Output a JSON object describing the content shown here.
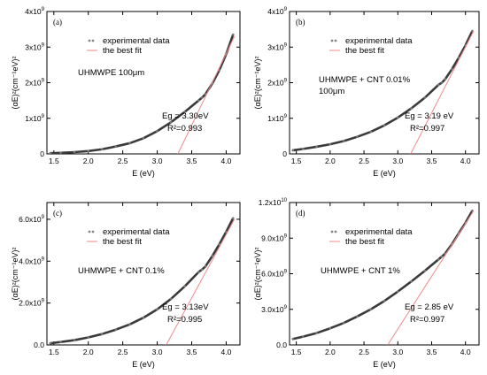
{
  "chart_data": [
    {
      "type": "scatter",
      "panel_label": "(a)",
      "ylabel": "(αE)²(cm⁻¹eV)²",
      "xlabel": "E (eV)",
      "xlim": [
        1.4,
        4.2
      ],
      "ylim": [
        0,
        4000000000
      ],
      "xticks": [
        "1.5",
        "2.0",
        "2.5",
        "3.0",
        "3.5",
        "4.0"
      ],
      "yticks": [
        {
          "v": 0,
          "b": "0",
          "e": ""
        },
        {
          "v": 1000000000,
          "b": "1x10",
          "e": "9"
        },
        {
          "v": 2000000000,
          "b": "2x10",
          "e": "9"
        },
        {
          "v": 3000000000,
          "b": "3x10",
          "e": "9"
        },
        {
          "v": 4000000000,
          "b": "4x10",
          "e": "9"
        }
      ],
      "legend": [
        "experimental data",
        "the best fit"
      ],
      "sample": "UHMWPE 100μm",
      "sample_line2": "",
      "eg_text": "Eg = 3.30eV",
      "r2_text": "R²=0.993",
      "series": [
        {
          "name": "experimental data",
          "kind": "points",
          "x": [
            1.45,
            1.6,
            1.8,
            2.0,
            2.2,
            2.4,
            2.6,
            2.8,
            3.0,
            3.2,
            3.4,
            3.6,
            3.65,
            3.7,
            3.8,
            3.9,
            4.0,
            4.1
          ],
          "y": [
            20000000,
            30000000,
            50000000,
            80000000,
            130000000,
            210000000,
            300000000,
            440000000,
            640000000,
            890000000,
            1180000000,
            1500000000,
            1580000000,
            1680000000,
            1980000000,
            2350000000,
            2800000000,
            3350000000
          ]
        },
        {
          "name": "the best fit",
          "kind": "line",
          "x": [
            3.3,
            4.12
          ],
          "y": [
            0,
            3300000000
          ]
        }
      ]
    },
    {
      "type": "scatter",
      "panel_label": "(b)",
      "ylabel": "(αE)²(cm⁻¹eV)²",
      "xlabel": "E (eV)",
      "xlim": [
        1.4,
        4.2
      ],
      "ylim": [
        0,
        4000000000
      ],
      "xticks": [
        "1.5",
        "2.0",
        "2.5",
        "3.0",
        "3.5",
        "4.0"
      ],
      "yticks": [
        {
          "v": 0,
          "b": "0",
          "e": ""
        },
        {
          "v": 1000000000,
          "b": "1x10",
          "e": "9"
        },
        {
          "v": 2000000000,
          "b": "2x10",
          "e": "9"
        },
        {
          "v": 3000000000,
          "b": "3x10",
          "e": "9"
        },
        {
          "v": 4000000000,
          "b": "4x10",
          "e": "9"
        }
      ],
      "legend": [
        "experimental data",
        "the best fit"
      ],
      "sample": "UHMWPE + CNT 0.01%",
      "sample_line2": "100μm",
      "eg_text": "Eg = 3.19 eV",
      "r2_text": "R²=0.997",
      "series": [
        {
          "name": "experimental data",
          "kind": "points",
          "x": [
            1.45,
            1.6,
            1.8,
            2.0,
            2.2,
            2.4,
            2.6,
            2.8,
            3.0,
            3.2,
            3.4,
            3.6,
            3.65,
            3.7,
            3.8,
            3.9,
            4.0,
            4.1
          ],
          "y": [
            100000000,
            140000000,
            200000000,
            270000000,
            360000000,
            480000000,
            620000000,
            800000000,
            1020000000,
            1280000000,
            1580000000,
            1940000000,
            2000000000,
            2100000000,
            2380000000,
            2700000000,
            3050000000,
            3450000000
          ]
        },
        {
          "name": "the best fit",
          "kind": "line",
          "x": [
            3.19,
            4.12
          ],
          "y": [
            0,
            3450000000
          ]
        }
      ]
    },
    {
      "type": "scatter",
      "panel_label": "(c)",
      "ylabel": "(αE)²(cm⁻¹eV)²",
      "xlabel": "E (eV)",
      "xlim": [
        1.4,
        4.2
      ],
      "ylim": [
        0,
        6800000000
      ],
      "xticks": [
        "1.5",
        "2.0",
        "2.5",
        "3.0",
        "3.5",
        "4.0"
      ],
      "yticks": [
        {
          "v": 0,
          "b": "0.0",
          "e": ""
        },
        {
          "v": 2000000000,
          "b": "2.0x10",
          "e": "9"
        },
        {
          "v": 4000000000,
          "b": "4.0x10",
          "e": "9"
        },
        {
          "v": 6000000000,
          "b": "6.0x10",
          "e": "9"
        }
      ],
      "legend": [
        "experimental data",
        "the best fit"
      ],
      "sample": "UHMWPE + CNT 0.1%",
      "sample_line2": "",
      "eg_text": "Eg = 3.13eV",
      "r2_text": "R²=0.995",
      "series": [
        {
          "name": "experimental data",
          "kind": "points",
          "x": [
            1.45,
            1.6,
            1.8,
            2.0,
            2.2,
            2.4,
            2.6,
            2.8,
            3.0,
            3.2,
            3.4,
            3.6,
            3.65,
            3.7,
            3.8,
            3.9,
            4.0,
            4.1
          ],
          "y": [
            80000000,
            140000000,
            230000000,
            360000000,
            520000000,
            730000000,
            980000000,
            1300000000,
            1700000000,
            2200000000,
            2800000000,
            3480000000,
            3600000000,
            3750000000,
            4250000000,
            4800000000,
            5400000000,
            6050000000
          ]
        },
        {
          "name": "the best fit",
          "kind": "line",
          "x": [
            3.13,
            4.12
          ],
          "y": [
            0,
            6000000000
          ]
        }
      ]
    },
    {
      "type": "scatter",
      "panel_label": "(d)",
      "ylabel": "(αE)²(cm⁻¹eV)²",
      "xlabel": "E (eV)",
      "xlim": [
        1.4,
        4.2
      ],
      "ylim": [
        0,
        12000000000
      ],
      "xticks": [
        "1.5",
        "2.0",
        "2.5",
        "3.0",
        "3.5",
        "4.0"
      ],
      "yticks": [
        {
          "v": 0,
          "b": "0.0",
          "e": ""
        },
        {
          "v": 3000000000,
          "b": "3.0x10",
          "e": "9"
        },
        {
          "v": 6000000000,
          "b": "6.0x10",
          "e": "9"
        },
        {
          "v": 9000000000,
          "b": "9.0x10",
          "e": "9"
        },
        {
          "v": 12000000000,
          "b": "1.2x10",
          "e": "10"
        }
      ],
      "legend": [
        "experimental data",
        "the best fit"
      ],
      "sample": "UHMWPE + CNT 1%",
      "sample_line2": "",
      "eg_text": "Eg = 2.85 eV",
      "r2_text": "R²=0.997",
      "series": [
        {
          "name": "experimental data",
          "kind": "points",
          "x": [
            1.45,
            1.6,
            1.8,
            2.0,
            2.2,
            2.4,
            2.6,
            2.8,
            3.0,
            3.2,
            3.4,
            3.6,
            3.65,
            3.7,
            3.8,
            3.9,
            4.0,
            4.1
          ],
          "y": [
            500000000,
            700000000,
            1000000000,
            1400000000,
            1850000000,
            2400000000,
            3000000000,
            3700000000,
            4500000000,
            5350000000,
            6250000000,
            7200000000,
            7450000000,
            7700000000,
            8500000000,
            9400000000,
            10300000000,
            11300000000
          ]
        },
        {
          "name": "the best fit",
          "kind": "line",
          "x": [
            2.85,
            4.12
          ],
          "y": [
            0,
            11300000000
          ]
        }
      ]
    }
  ]
}
